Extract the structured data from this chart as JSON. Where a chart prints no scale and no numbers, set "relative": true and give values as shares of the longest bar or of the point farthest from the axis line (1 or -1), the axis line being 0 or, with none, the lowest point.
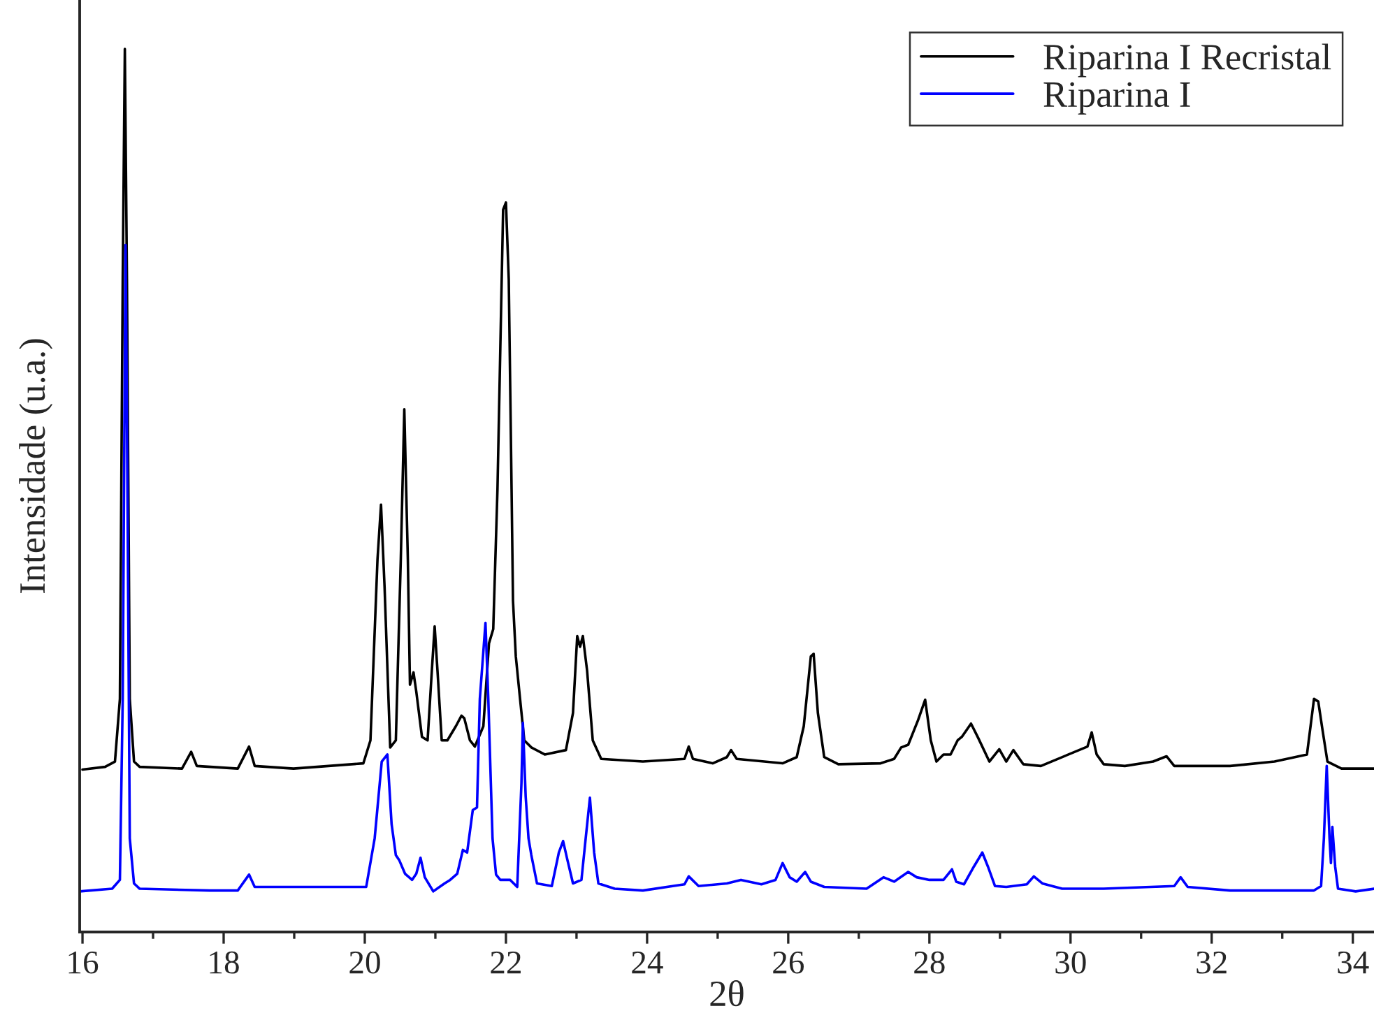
{
  "chart_data": {
    "type": "line",
    "xlabel": "2θ",
    "ylabel": "Intensidade (u.a.)",
    "relative": true,
    "xlim": [
      15.96,
      34.3
    ],
    "xticks": [
      16,
      {
        "value": 17,
        "label": null
      },
      18,
      {
        "value": 19,
        "label": null
      },
      20,
      {
        "value": 21,
        "label": null
      },
      22,
      {
        "value": 23,
        "label": null
      },
      24,
      {
        "value": 25,
        "label": null
      },
      26,
      {
        "value": 27,
        "label": null
      },
      28,
      {
        "value": 29,
        "label": null
      },
      30,
      {
        "value": 31,
        "label": null
      },
      32,
      {
        "value": 33,
        "label": null
      },
      34
    ],
    "tick_labels": "x",
    "legend": "top right",
    "grid": false,
    "marker": "none",
    "line_style": "solid",
    "series": [
      {
        "name": "Riparina I Recristal",
        "color": "#000000",
        "x": [
          16.0,
          16.32,
          16.46,
          16.53,
          16.57,
          16.6,
          16.63,
          16.67,
          16.73,
          16.81,
          17.41,
          17.54,
          17.62,
          18.2,
          18.36,
          18.44,
          18.99,
          19.98,
          20.08,
          20.18,
          20.23,
          20.28,
          20.36,
          20.44,
          20.51,
          20.56,
          20.61,
          20.64,
          20.69,
          20.73,
          20.81,
          20.89,
          20.95,
          20.99,
          21.03,
          21.09,
          21.17,
          21.29,
          21.37,
          21.41,
          21.49,
          21.56,
          21.68,
          21.76,
          21.82,
          21.88,
          21.92,
          21.96,
          22.0,
          22.04,
          22.08,
          22.1,
          22.14,
          22.2,
          22.26,
          22.36,
          22.55,
          22.85,
          22.95,
          23.01,
          23.05,
          23.09,
          23.15,
          23.23,
          23.35,
          23.94,
          24.53,
          24.59,
          24.65,
          24.93,
          25.13,
          25.19,
          25.27,
          25.92,
          26.12,
          26.22,
          26.32,
          26.36,
          26.42,
          26.51,
          26.71,
          27.31,
          27.5,
          27.6,
          27.7,
          27.84,
          27.94,
          28.02,
          28.1,
          28.2,
          28.3,
          28.4,
          28.46,
          28.59,
          28.69,
          28.85,
          28.99,
          29.09,
          29.19,
          29.33,
          29.58,
          30.24,
          30.3,
          30.37,
          30.47,
          30.77,
          31.17,
          31.36,
          31.47,
          32.26,
          32.89,
          33.35,
          33.45,
          33.51,
          33.57,
          33.64,
          33.84,
          34.3
        ],
        "values": [
          0.184,
          0.187,
          0.193,
          0.264,
          0.739,
          1.0,
          0.739,
          0.264,
          0.193,
          0.187,
          0.185,
          0.204,
          0.188,
          0.185,
          0.21,
          0.188,
          0.185,
          0.191,
          0.217,
          0.422,
          0.484,
          0.391,
          0.209,
          0.217,
          0.422,
          0.592,
          0.422,
          0.28,
          0.294,
          0.272,
          0.221,
          0.217,
          0.296,
          0.346,
          0.296,
          0.217,
          0.217,
          0.233,
          0.245,
          0.242,
          0.217,
          0.21,
          0.233,
          0.327,
          0.343,
          0.501,
          0.66,
          0.818,
          0.826,
          0.739,
          0.501,
          0.375,
          0.312,
          0.264,
          0.217,
          0.209,
          0.201,
          0.206,
          0.248,
          0.335,
          0.323,
          0.335,
          0.296,
          0.217,
          0.196,
          0.193,
          0.196,
          0.21,
          0.196,
          0.191,
          0.198,
          0.206,
          0.196,
          0.191,
          0.198,
          0.233,
          0.312,
          0.315,
          0.248,
          0.198,
          0.19,
          0.191,
          0.196,
          0.209,
          0.212,
          0.24,
          0.263,
          0.217,
          0.193,
          0.201,
          0.201,
          0.217,
          0.221,
          0.236,
          0.22,
          0.193,
          0.207,
          0.193,
          0.206,
          0.19,
          0.188,
          0.21,
          0.226,
          0.201,
          0.19,
          0.188,
          0.193,
          0.199,
          0.188,
          0.188,
          0.193,
          0.201,
          0.264,
          0.261,
          0.229,
          0.193,
          0.185,
          0.185
        ]
      },
      {
        "name": "Riparina I",
        "color": "#0000ff",
        "x": [
          15.96,
          16.42,
          16.53,
          16.57,
          16.61,
          16.63,
          16.67,
          16.73,
          16.81,
          17.8,
          18.2,
          18.36,
          18.44,
          19.19,
          20.02,
          20.14,
          20.24,
          20.32,
          20.38,
          20.44,
          20.49,
          20.57,
          20.67,
          20.73,
          20.79,
          20.85,
          20.97,
          21.13,
          21.21,
          21.31,
          21.39,
          21.45,
          21.53,
          21.59,
          21.63,
          21.71,
          21.75,
          21.81,
          21.86,
          21.92,
          22.06,
          22.16,
          22.22,
          22.24,
          22.28,
          22.32,
          22.36,
          22.44,
          22.65,
          22.75,
          22.81,
          22.87,
          22.95,
          23.07,
          23.13,
          23.19,
          23.25,
          23.31,
          23.54,
          23.94,
          24.53,
          24.59,
          24.73,
          25.13,
          25.33,
          25.62,
          25.82,
          25.92,
          26.02,
          26.12,
          26.24,
          26.32,
          26.51,
          27.11,
          27.35,
          27.5,
          27.7,
          27.82,
          28.0,
          28.2,
          28.32,
          28.38,
          28.49,
          28.63,
          28.75,
          28.83,
          28.93,
          29.09,
          29.38,
          29.48,
          29.6,
          29.88,
          30.47,
          31.47,
          31.56,
          31.66,
          32.26,
          33.45,
          33.55,
          33.59,
          33.63,
          33.67,
          33.69,
          33.71,
          33.75,
          33.79,
          34.04,
          34.3
        ],
        "values": [
          0.046,
          0.049,
          0.059,
          0.264,
          0.778,
          0.581,
          0.106,
          0.055,
          0.049,
          0.047,
          0.047,
          0.065,
          0.051,
          0.051,
          0.051,
          0.106,
          0.193,
          0.201,
          0.122,
          0.087,
          0.081,
          0.066,
          0.059,
          0.066,
          0.084,
          0.062,
          0.046,
          0.055,
          0.059,
          0.066,
          0.093,
          0.09,
          0.138,
          0.141,
          0.264,
          0.35,
          0.264,
          0.106,
          0.065,
          0.059,
          0.059,
          0.051,
          0.169,
          0.237,
          0.153,
          0.106,
          0.087,
          0.055,
          0.052,
          0.09,
          0.103,
          0.082,
          0.055,
          0.059,
          0.106,
          0.152,
          0.09,
          0.055,
          0.049,
          0.047,
          0.054,
          0.063,
          0.052,
          0.055,
          0.059,
          0.054,
          0.059,
          0.078,
          0.062,
          0.057,
          0.068,
          0.057,
          0.051,
          0.049,
          0.062,
          0.057,
          0.068,
          0.062,
          0.059,
          0.059,
          0.071,
          0.057,
          0.054,
          0.074,
          0.09,
          0.074,
          0.052,
          0.051,
          0.054,
          0.063,
          0.055,
          0.049,
          0.049,
          0.052,
          0.062,
          0.051,
          0.047,
          0.047,
          0.052,
          0.106,
          0.188,
          0.106,
          0.078,
          0.119,
          0.074,
          0.049,
          0.046,
          0.049
        ]
      }
    ]
  }
}
